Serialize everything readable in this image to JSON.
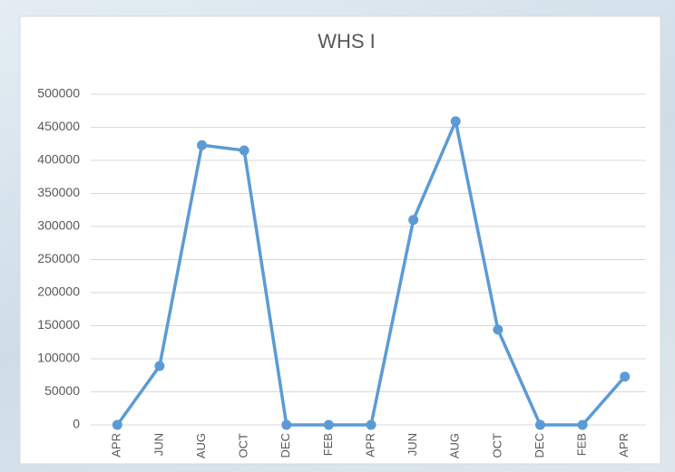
{
  "chart_data": {
    "type": "line",
    "title": "WHS I",
    "categories": [
      "APR",
      "JUN",
      "AUG",
      "OCT",
      "DEC",
      "FEB",
      "APR",
      "JUN",
      "AUG",
      "OCT",
      "DEC",
      "FEB",
      "APR"
    ],
    "series": [
      {
        "name": "WHS I",
        "color": "#5b9bd5",
        "values": [
          0,
          89000,
          423000,
          415000,
          0,
          0,
          0,
          310000,
          459000,
          144000,
          0,
          0,
          73000
        ]
      }
    ],
    "ylim": [
      0,
      500000
    ],
    "yticks": [
      0,
      50000,
      100000,
      150000,
      200000,
      250000,
      300000,
      350000,
      400000,
      450000,
      500000
    ],
    "grid": true,
    "legend": false
  }
}
